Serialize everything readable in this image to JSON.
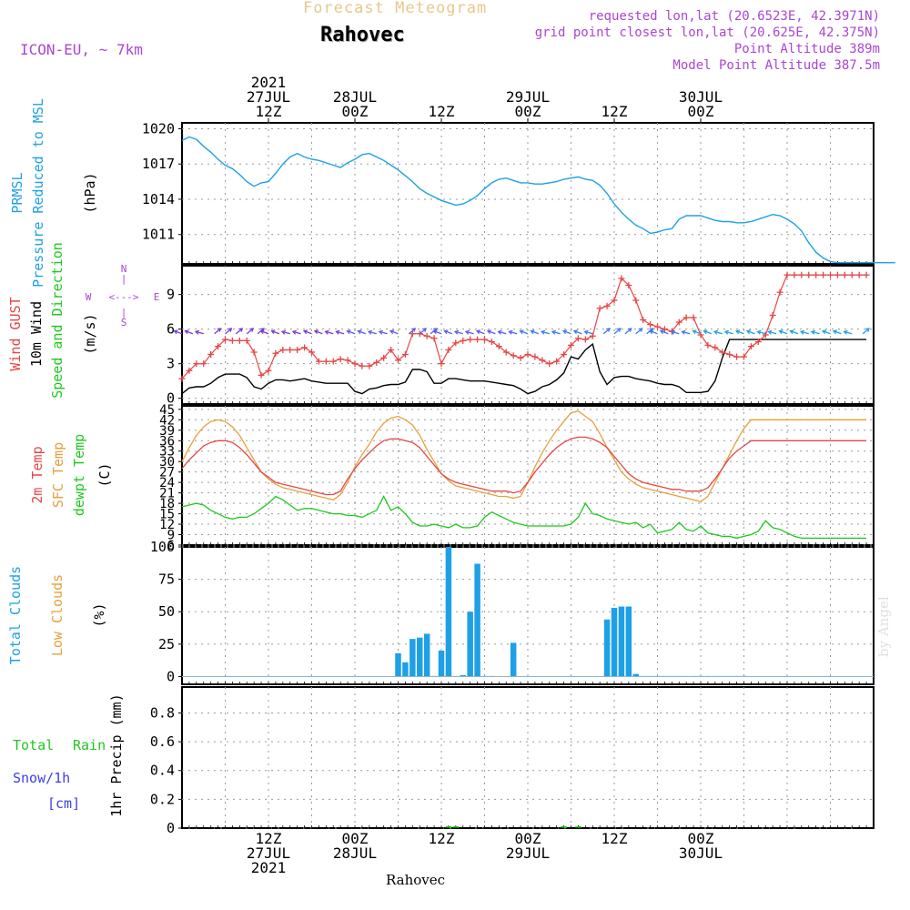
{
  "header": {
    "subtitle": "Forecast Meteogram",
    "title": "Rahovec",
    "model": "ICON-EU, ~ 7km",
    "requested": "requested lon,lat (20.6523E, 42.3971N)",
    "gridpoint": "grid point closest lon,lat (20.625E, 42.375N)",
    "point_alt": "Point Altitude 389m",
    "model_alt": "Model Point Altitude 387.5m",
    "footer_location": "Rahovec",
    "watermark": "by Angel"
  },
  "colors": {
    "pressure": "#1ea0e6",
    "gust": "#e64646",
    "wind": "#000000",
    "t2m": "#e64646",
    "sfc": "#e6a03c",
    "dew": "#1ec81e",
    "clouds": "#1ea0e6",
    "rain": "#1ec81e",
    "purple": "#aa46d2"
  },
  "time_axis": {
    "top": [
      {
        "t": 12,
        "lines": [
          "2021",
          "27JUL",
          "12Z"
        ]
      },
      {
        "t": 24,
        "lines": [
          "28JUL",
          "00Z"
        ]
      },
      {
        "t": 36,
        "lines": [
          "12Z"
        ]
      },
      {
        "t": 48,
        "lines": [
          "29JUL",
          "00Z"
        ]
      },
      {
        "t": 60,
        "lines": [
          "12Z"
        ]
      },
      {
        "t": 72,
        "lines": [
          "30JUL",
          "00Z"
        ]
      }
    ],
    "bottom": [
      {
        "t": 12,
        "lines": [
          "12Z",
          "27JUL",
          "2021"
        ]
      },
      {
        "t": 24,
        "lines": [
          "00Z",
          "28JUL"
        ]
      },
      {
        "t": 36,
        "lines": [
          "12Z"
        ]
      },
      {
        "t": 48,
        "lines": [
          "00Z",
          "29JUL"
        ]
      },
      {
        "t": 60,
        "lines": [
          "12Z"
        ]
      },
      {
        "t": 72,
        "lines": [
          "00Z",
          "30JUL"
        ]
      }
    ]
  },
  "chart_data": [
    {
      "type": "line",
      "name": "pressure",
      "title": "PRMSL Pressure Reduced to MSL",
      "ylabel": "(hPa)",
      "labels": [
        "PRMSL",
        "Pressure Reduced to MSL"
      ],
      "ylim": [
        1008.5,
        1020.5
      ],
      "yticks": [
        1011,
        1014,
        1017,
        1020
      ],
      "x": [
        0,
        1,
        2,
        3,
        4,
        5,
        6,
        7,
        8,
        9,
        10,
        11,
        12,
        13,
        14,
        15,
        16,
        17,
        18,
        19,
        20,
        21,
        22,
        23,
        24,
        25,
        26,
        27,
        28,
        29,
        30,
        31,
        32,
        33,
        34,
        35,
        36,
        37,
        38,
        39,
        40,
        41,
        42,
        43,
        44,
        45,
        46,
        47,
        48,
        49,
        50,
        51,
        52,
        53,
        54,
        55,
        56,
        57,
        58,
        59,
        60,
        61,
        62,
        63,
        64,
        65,
        66,
        67,
        68,
        69,
        70,
        71,
        72,
        73,
        74,
        75,
        76,
        77,
        78,
        79,
        80,
        81,
        82,
        83,
        84,
        85,
        86,
        87,
        88,
        89,
        90,
        91,
        92,
        93,
        94,
        95,
        96,
        97,
        98,
        99
      ],
      "series": [
        {
          "name": "PRMSL",
          "values": [
            1019.0,
            1019.3,
            1019.1,
            1018.5,
            1018.0,
            1017.4,
            1016.9,
            1016.6,
            1016.1,
            1015.5,
            1015.1,
            1015.4,
            1015.5,
            1016.2,
            1017.0,
            1017.6,
            1017.9,
            1017.6,
            1017.4,
            1017.3,
            1017.1,
            1016.9,
            1016.7,
            1017.1,
            1017.4,
            1017.8,
            1017.9,
            1017.6,
            1017.3,
            1016.9,
            1016.5,
            1016.0,
            1015.5,
            1014.9,
            1014.5,
            1014.2,
            1013.9,
            1013.7,
            1013.5,
            1013.6,
            1013.9,
            1014.3,
            1014.9,
            1015.4,
            1015.7,
            1015.8,
            1015.6,
            1015.4,
            1015.4,
            1015.3,
            1015.3,
            1015.4,
            1015.5,
            1015.7,
            1015.8,
            1015.9,
            1015.7,
            1015.6,
            1015.2,
            1014.5,
            1013.6,
            1012.9,
            1012.3,
            1011.8,
            1011.5,
            1011.1,
            1011.2,
            1011.4,
            1011.5,
            1012.3,
            1012.6,
            1012.6,
            1012.6,
            1012.4,
            1012.2,
            1012.1,
            1012.1,
            1012.0,
            1012.0,
            1012.1,
            1012.3,
            1012.5,
            1012.7,
            1012.6,
            1012.3,
            1011.9,
            1011.3,
            1010.3,
            1009.5,
            1009.0,
            1008.7,
            1008.6,
            1008.6,
            1008.6,
            1008.6,
            1008.6,
            1008.6,
            1008.6,
            1008.6,
            1008.6
          ]
        }
      ]
    },
    {
      "type": "line",
      "name": "wind",
      "title": "Wind GUST 10m Wind Speed and Direction",
      "ylabel": "(m/s)",
      "labels": [
        "Wind GUST",
        "10m Wind",
        "Speed and Direction"
      ],
      "compass": {
        "n": "N",
        "s": "S",
        "w": "W",
        "e": "E",
        "ns_arrow": "|",
        "ew_arrow": "<--->"
      },
      "ylim": [
        -0.5,
        11.5
      ],
      "yticks": [
        0,
        3,
        6,
        9
      ],
      "x": [
        0,
        1,
        2,
        3,
        4,
        5,
        6,
        7,
        8,
        9,
        10,
        11,
        12,
        13,
        14,
        15,
        16,
        17,
        18,
        19,
        20,
        21,
        22,
        23,
        24,
        25,
        26,
        27,
        28,
        29,
        30,
        31,
        32,
        33,
        34,
        35,
        36,
        37,
        38,
        39,
        40,
        41,
        42,
        43,
        44,
        45,
        46,
        47,
        48,
        49,
        50,
        51,
        52,
        53,
        54,
        55,
        56,
        57,
        58,
        59,
        60,
        61,
        62,
        63,
        64,
        65,
        66,
        67,
        68,
        69,
        70,
        71,
        72,
        73,
        74,
        75,
        76,
        77,
        78,
        79,
        80,
        81,
        82,
        83,
        84,
        85,
        86,
        87,
        88,
        89,
        90,
        91,
        92,
        93,
        94,
        95
      ],
      "series": [
        {
          "name": "Wind GUST",
          "values": [
            1.7,
            2.4,
            3.0,
            3.0,
            3.8,
            4.5,
            5.1,
            5.0,
            5.0,
            5.0,
            4.0,
            2.0,
            2.4,
            3.9,
            4.2,
            4.2,
            4.2,
            4.4,
            4.0,
            3.2,
            3.2,
            3.2,
            3.4,
            3.3,
            3.0,
            2.8,
            2.8,
            3.1,
            3.5,
            4.2,
            3.3,
            3.8,
            5.6,
            5.6,
            5.4,
            5.2,
            3.0,
            4.2,
            4.8,
            5.0,
            5.1,
            5.1,
            5.1,
            4.9,
            4.5,
            4.0,
            3.7,
            3.5,
            3.8,
            3.6,
            3.3,
            3.0,
            3.2,
            3.8,
            4.6,
            5.2,
            5.1,
            5.4,
            7.8,
            8.0,
            8.5,
            10.4,
            9.8,
            8.5,
            6.8,
            6.4,
            6.2,
            6.0,
            5.8,
            6.6,
            7.0,
            7.0,
            5.5,
            4.6,
            4.4,
            4.0,
            3.8,
            3.6,
            3.6,
            4.5,
            4.9,
            5.5,
            7.2,
            9.2,
            10.7,
            10.7,
            10.7,
            10.7,
            10.7,
            10.7,
            10.7,
            10.7,
            10.7,
            10.7,
            10.7,
            10.7
          ]
        },
        {
          "name": "10m Wind",
          "values": [
            0.4,
            0.9,
            1.0,
            1.0,
            1.3,
            1.8,
            2.1,
            2.1,
            2.1,
            1.8,
            1.0,
            0.8,
            1.3,
            1.6,
            1.6,
            1.5,
            1.6,
            1.7,
            1.5,
            1.4,
            1.3,
            1.3,
            1.3,
            1.3,
            0.6,
            0.4,
            0.8,
            0.9,
            1.1,
            1.2,
            1.2,
            1.4,
            2.5,
            2.5,
            2.3,
            1.3,
            1.3,
            1.7,
            1.7,
            1.6,
            1.5,
            1.5,
            1.5,
            1.4,
            1.3,
            1.2,
            1.1,
            0.8,
            0.4,
            0.6,
            1.0,
            1.2,
            1.6,
            2.2,
            3.6,
            3.4,
            4.2,
            4.7,
            2.3,
            1.2,
            1.8,
            1.9,
            1.9,
            1.7,
            1.6,
            1.5,
            1.3,
            1.2,
            1.2,
            1.0,
            0.5,
            0.5,
            0.5,
            0.6,
            1.5,
            3.5,
            5.1,
            5.1,
            5.1,
            5.1,
            5.1,
            5.1,
            5.1,
            5.1,
            5.1,
            5.1,
            5.1,
            5.1,
            5.1,
            5.1,
            5.1,
            5.1,
            5.1,
            5.1,
            5.1,
            5.1
          ]
        }
      ]
    },
    {
      "type": "line",
      "name": "temperature",
      "title": "2m Temp SFC Temp dewpt Temp",
      "ylabel": "(C)",
      "labels": [
        "2m Temp",
        "SFC Temp",
        "dewpt Temp"
      ],
      "ylim": [
        6,
        46
      ],
      "yticks": [
        6,
        9,
        12,
        15,
        18,
        21,
        24,
        27,
        30,
        33,
        36,
        39,
        42,
        45
      ],
      "x": [
        0,
        1,
        2,
        3,
        4,
        5,
        6,
        7,
        8,
        9,
        10,
        11,
        12,
        13,
        14,
        15,
        16,
        17,
        18,
        19,
        20,
        21,
        22,
        23,
        24,
        25,
        26,
        27,
        28,
        29,
        30,
        31,
        32,
        33,
        34,
        35,
        36,
        37,
        38,
        39,
        40,
        41,
        42,
        43,
        44,
        45,
        46,
        47,
        48,
        49,
        50,
        51,
        52,
        53,
        54,
        55,
        56,
        57,
        58,
        59,
        60,
        61,
        62,
        63,
        64,
        65,
        66,
        67,
        68,
        69,
        70,
        71,
        72,
        73,
        74,
        75,
        76,
        77,
        78,
        79,
        80,
        81,
        82,
        83,
        84,
        85,
        86,
        87,
        88,
        89,
        90,
        91,
        92,
        93,
        94,
        95
      ],
      "series": [
        {
          "name": "2m Temp",
          "values": [
            28,
            30.5,
            32.5,
            34.5,
            35.5,
            36,
            36,
            35.5,
            34,
            32,
            29.5,
            27,
            25.5,
            24,
            23.5,
            23,
            22.5,
            22,
            21.5,
            21,
            20.5,
            20.5,
            21.5,
            25,
            28,
            30.5,
            32.5,
            34.5,
            36,
            36.5,
            36.5,
            36,
            35.5,
            34,
            31.5,
            29,
            26.5,
            25,
            24,
            23.5,
            23,
            22.5,
            22,
            21.5,
            21.5,
            21.5,
            21,
            21.5,
            24,
            27,
            29.5,
            32,
            34,
            35.5,
            36.5,
            37,
            37,
            36.5,
            35.5,
            34,
            31.5,
            29,
            26.5,
            25,
            24,
            23.5,
            23,
            22.5,
            22,
            22,
            21.5,
            21.5,
            21.5,
            22.5,
            25,
            28,
            31,
            33,
            34.5,
            36,
            36,
            36,
            36,
            36,
            36,
            36,
            36,
            36,
            36,
            36,
            36,
            36,
            36,
            36,
            36,
            36
          ]
        },
        {
          "name": "SFC Temp",
          "values": [
            30,
            34,
            37.5,
            40,
            41.5,
            42,
            41.5,
            40,
            37.5,
            34,
            30.5,
            27,
            25,
            23.5,
            22.5,
            22,
            21.5,
            21,
            20.5,
            20,
            19.5,
            19,
            20.5,
            24,
            28.5,
            32,
            35,
            38.5,
            41,
            42.5,
            43,
            42,
            40.5,
            37.5,
            33.5,
            30,
            26.5,
            24.5,
            23,
            22.5,
            22,
            21.5,
            21,
            20.5,
            20,
            20,
            19.5,
            20,
            24,
            28.5,
            32.5,
            36,
            39,
            41.5,
            44,
            44.5,
            43,
            41.5,
            38,
            34,
            30.5,
            27,
            25,
            23.5,
            22.5,
            22,
            21.5,
            21,
            20.5,
            20,
            19.5,
            19,
            18.5,
            20,
            24,
            28,
            32,
            36,
            39.5,
            42,
            42,
            42,
            42,
            42,
            42,
            42,
            42,
            42,
            42,
            42,
            42,
            42,
            42,
            42,
            42,
            42
          ]
        },
        {
          "name": "dewpt Temp",
          "values": [
            17,
            17.5,
            18,
            17.5,
            16,
            15,
            14,
            13.5,
            14,
            14,
            15,
            16.5,
            18,
            20,
            19,
            17.5,
            16,
            16.5,
            16.5,
            16,
            15.5,
            15,
            15,
            14.5,
            14.5,
            14,
            15,
            16,
            20,
            16,
            17,
            15,
            12.5,
            11.5,
            11.5,
            12,
            11.5,
            11,
            12,
            11,
            11,
            11.5,
            14,
            15.5,
            14.5,
            13.5,
            12.5,
            12,
            11.5,
            11.5,
            11.5,
            11.5,
            11.5,
            11.5,
            12,
            14,
            18,
            15,
            14.5,
            13.5,
            13,
            12.5,
            12,
            12.5,
            11,
            12,
            9.5,
            10,
            10.5,
            12.5,
            10.5,
            10,
            11.5,
            9.5,
            9,
            8.5,
            8.5,
            8,
            8.5,
            9,
            10,
            13,
            11,
            10.5,
            9.5,
            8.5,
            8,
            8,
            8,
            8,
            8,
            8,
            8,
            8,
            8,
            8
          ]
        }
      ]
    },
    {
      "type": "bar",
      "name": "clouds",
      "title": "Total Clouds Low Clouds",
      "ylabel": "(%)",
      "labels": [
        "Total Clouds",
        "Low Clouds"
      ],
      "ylim": [
        -6,
        100
      ],
      "yticks": [
        0,
        25,
        50,
        75,
        100
      ],
      "x": [
        30,
        31,
        32,
        33,
        34,
        35,
        36,
        37,
        38,
        39,
        40,
        41,
        42,
        43,
        46,
        59,
        60,
        61,
        62,
        63,
        64,
        65,
        66,
        67,
        68,
        69,
        70,
        71,
        72,
        73,
        74,
        75,
        76,
        77,
        78
      ],
      "series": [
        {
          "name": "Total Clouds",
          "values": [
            18,
            11,
            29,
            30,
            33,
            0,
            20,
            100,
            0,
            1,
            50,
            87,
            0,
            0,
            26,
            44,
            53,
            54,
            54,
            2,
            0,
            0,
            0,
            0,
            0,
            0,
            0,
            0,
            0,
            0,
            0,
            0,
            0,
            0,
            0
          ]
        }
      ]
    },
    {
      "type": "bar",
      "name": "precip",
      "title": "Total Rain Snow/1h",
      "ylabel": "1hr Precip (mm)",
      "labels": [
        "Total",
        "Rain",
        "Snow/1h",
        "[cm]"
      ],
      "ylim": [
        0,
        0.98
      ],
      "yticks": [
        0,
        0.2,
        0.4,
        0.6,
        0.8
      ],
      "x": [
        37,
        38,
        53,
        55
      ],
      "series": [
        {
          "name": "Total Rain",
          "values": [
            0.01,
            0.01,
            0.004,
            0.004
          ]
        }
      ]
    }
  ]
}
